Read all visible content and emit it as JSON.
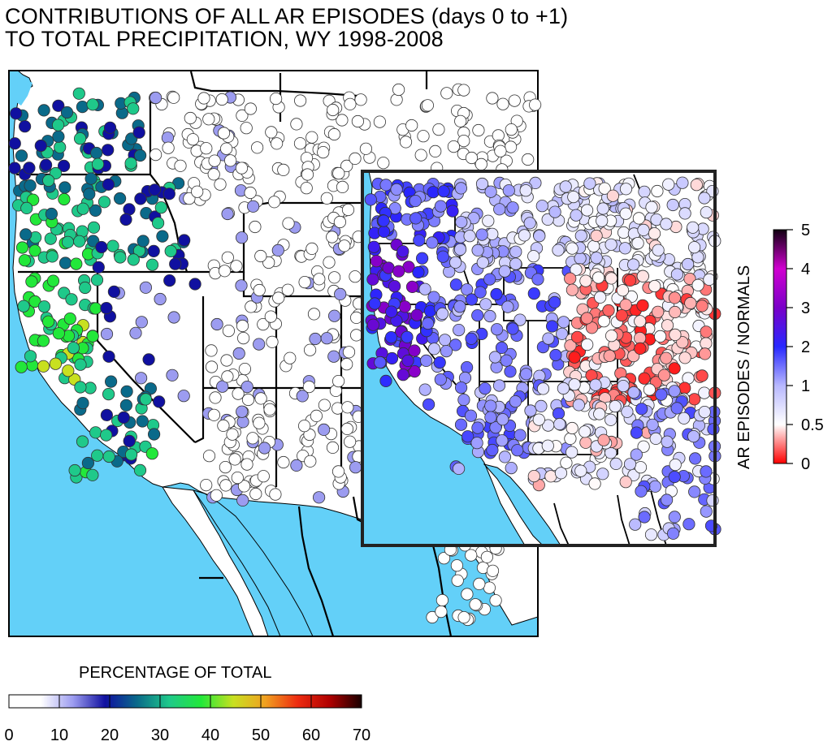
{
  "title": {
    "line1": "CONTRIBUTIONS OF ALL AR EPISODES (days 0 to +1)",
    "line2": "TO TOTAL PRECIPITATION, WY 1998-2008"
  },
  "main_map": {
    "colorbar": {
      "title": "PERCENTAGE OF TOTAL",
      "ticks": [
        "0",
        "10",
        "20",
        "30",
        "40",
        "50",
        "60",
        "70"
      ],
      "stops": [
        "#ffffff",
        "#ffffff",
        "#9c9cf0",
        "#1010a0",
        "#0a6a8a",
        "#1fc98a",
        "#22e83a",
        "#c8e020",
        "#f0a020",
        "#ee2c10",
        "#b00000",
        "#180000"
      ]
    }
  },
  "inset_map": {
    "colorbar": {
      "title": "AR EPISODES / NORMALS",
      "ticks": [
        "0",
        "0.5",
        "1",
        "2",
        "3",
        "4",
        "5"
      ],
      "stops": [
        "#ff0000",
        "#ffffff",
        "#b8b8ff",
        "#2828ff",
        "#7a00c8",
        "#d000d0",
        "#100010"
      ]
    }
  },
  "colors": {
    "ocean": "#63d0f8",
    "land": "#ffffff",
    "border": "#000000"
  }
}
